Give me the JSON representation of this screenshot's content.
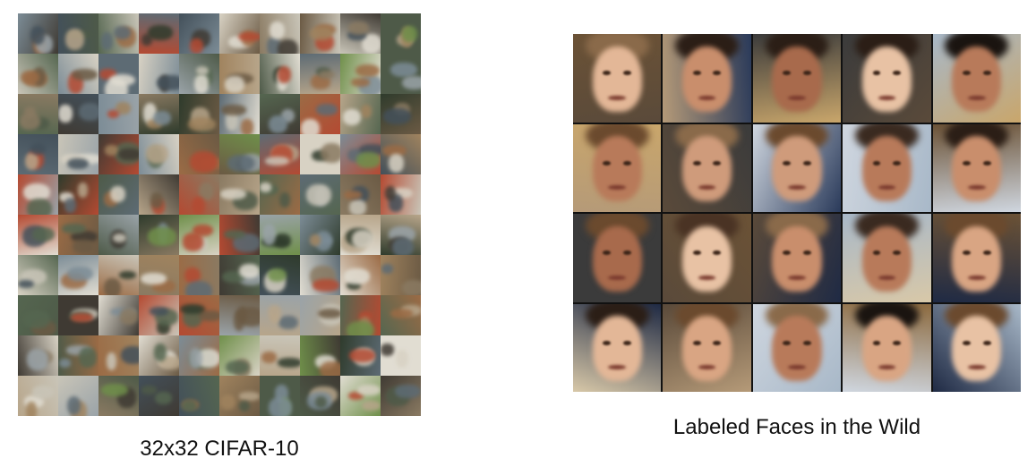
{
  "cifar": {
    "caption": "32x32 CIFAR-10",
    "rows": 10,
    "cols": 10
  },
  "lfw": {
    "caption": "Labeled Faces in the Wild",
    "rows": 4,
    "cols": 5
  }
}
